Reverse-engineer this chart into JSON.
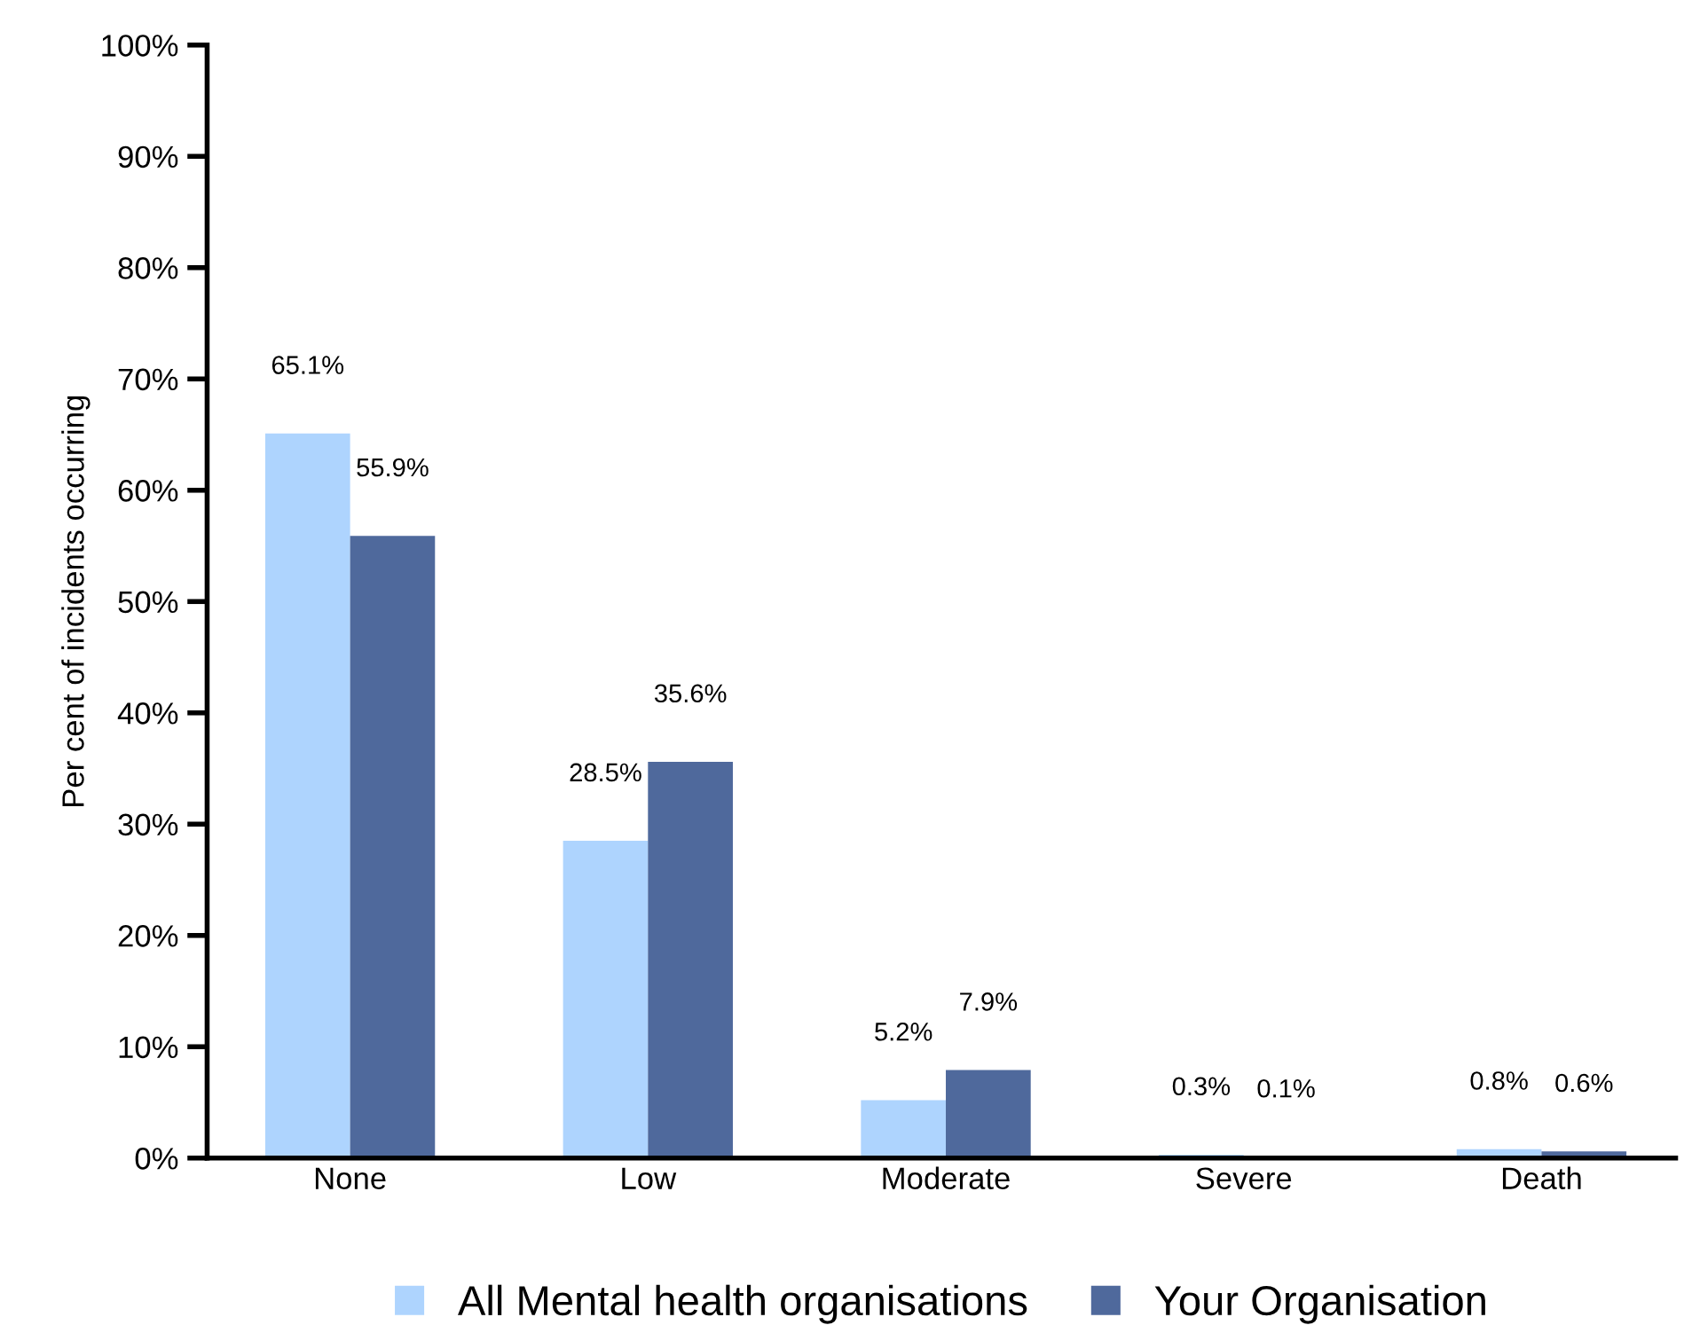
{
  "chart_data": {
    "type": "bar",
    "ylabel": "Per cent of incidents occurring",
    "categories": [
      "None",
      "Low",
      "Moderate",
      "Severe",
      "Death"
    ],
    "series": [
      {
        "name": "All Mental health organisations",
        "color": "#aed4fe",
        "values": [
          65.1,
          28.5,
          5.2,
          0.3,
          0.8
        ],
        "value_labels": [
          "65.1%",
          "28.5%",
          "5.2%",
          "0.3%",
          "0.8%"
        ]
      },
      {
        "name": "Your Organisation",
        "color": "#4f699c",
        "values": [
          55.9,
          35.6,
          7.9,
          0.1,
          0.6
        ],
        "value_labels": [
          "55.9%",
          "35.6%",
          "7.9%",
          "0.1%",
          "0.6%"
        ]
      }
    ],
    "ylim": [
      0,
      100
    ],
    "yticks": [
      {
        "value": 0,
        "label": "0%"
      },
      {
        "value": 10,
        "label": "10%"
      },
      {
        "value": 20,
        "label": "20%"
      },
      {
        "value": 30,
        "label": "30%"
      },
      {
        "value": 40,
        "label": "40%"
      },
      {
        "value": 50,
        "label": "50%"
      },
      {
        "value": 60,
        "label": "60%"
      },
      {
        "value": 70,
        "label": "70%"
      },
      {
        "value": 80,
        "label": "80%"
      },
      {
        "value": 90,
        "label": "90%"
      },
      {
        "value": 100,
        "label": "100%"
      }
    ],
    "grid": false,
    "legend": "bottom"
  }
}
